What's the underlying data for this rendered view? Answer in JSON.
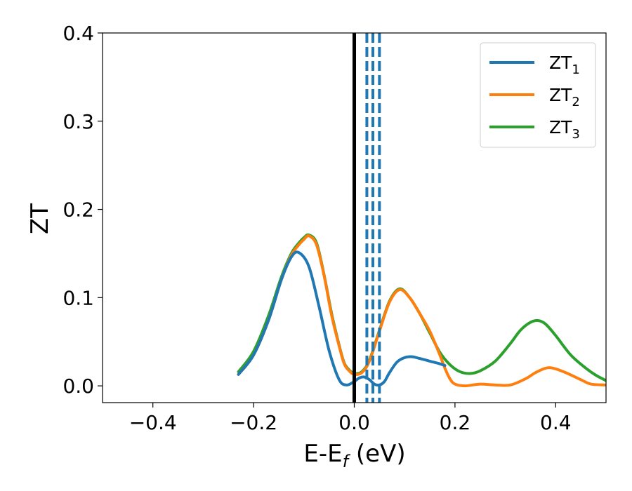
{
  "chart_data": {
    "type": "line",
    "xlabel": "E-E",
    "xlabel_sub": "f",
    "xlabel_unit": " (eV)",
    "ylabel": "ZT",
    "xlim": [
      -0.5,
      0.5
    ],
    "ylim": [
      -0.019,
      0.4
    ],
    "xticks": [
      -0.4,
      -0.2,
      0.0,
      0.2,
      0.4
    ],
    "xtick_labels": [
      "−0.4",
      "−0.2",
      "0.0",
      "0.2",
      "0.4"
    ],
    "yticks": [
      0.0,
      0.1,
      0.2,
      0.3,
      0.4
    ],
    "ytick_labels": [
      "0.0",
      "0.1",
      "0.2",
      "0.3",
      "0.4"
    ],
    "grid": false,
    "legend_position": "top-right",
    "vertical_lines": [
      {
        "x": 0.0,
        "color": "#000000",
        "style": "solid"
      },
      {
        "x": 0.025,
        "color": "#1f77b4",
        "style": "dashed"
      },
      {
        "x": 0.037,
        "color": "#1f77b4",
        "style": "dashed"
      },
      {
        "x": 0.05,
        "color": "#1f77b4",
        "style": "dashed"
      }
    ],
    "series": [
      {
        "name": "ZT",
        "name_sub": "1",
        "color": "#1f77b4",
        "points": [
          [
            -0.23,
            0.013
          ],
          [
            -0.2,
            0.035
          ],
          [
            -0.17,
            0.075
          ],
          [
            -0.145,
            0.12
          ],
          [
            -0.125,
            0.146
          ],
          [
            -0.11,
            0.151
          ],
          [
            -0.09,
            0.135
          ],
          [
            -0.07,
            0.09
          ],
          [
            -0.05,
            0.04
          ],
          [
            -0.03,
            0.007
          ],
          [
            -0.015,
            0.001
          ],
          [
            0.0,
            0.005
          ],
          [
            0.01,
            0.009
          ],
          [
            0.02,
            0.01
          ],
          [
            0.03,
            0.007
          ],
          [
            0.04,
            0.002
          ],
          [
            0.05,
            0.001
          ],
          [
            0.06,
            0.005
          ],
          [
            0.07,
            0.015
          ],
          [
            0.085,
            0.027
          ],
          [
            0.1,
            0.032
          ],
          [
            0.115,
            0.033
          ],
          [
            0.13,
            0.031
          ],
          [
            0.15,
            0.028
          ],
          [
            0.17,
            0.025
          ],
          [
            0.18,
            0.023
          ]
        ]
      },
      {
        "name": "ZT",
        "name_sub": "2",
        "color": "#ff7f0e",
        "points": [
          [
            -0.23,
            0.013
          ],
          [
            -0.2,
            0.035
          ],
          [
            -0.17,
            0.075
          ],
          [
            -0.145,
            0.12
          ],
          [
            -0.125,
            0.148
          ],
          [
            -0.11,
            0.16
          ],
          [
            -0.1,
            0.166
          ],
          [
            -0.09,
            0.17
          ],
          [
            -0.075,
            0.16
          ],
          [
            -0.06,
            0.125
          ],
          [
            -0.045,
            0.08
          ],
          [
            -0.03,
            0.045
          ],
          [
            -0.02,
            0.025
          ],
          [
            -0.01,
            0.017
          ],
          [
            0.0,
            0.013
          ],
          [
            0.015,
            0.015
          ],
          [
            0.03,
            0.028
          ],
          [
            0.05,
            0.062
          ],
          [
            0.07,
            0.095
          ],
          [
            0.09,
            0.109
          ],
          [
            0.11,
            0.1
          ],
          [
            0.13,
            0.082
          ],
          [
            0.15,
            0.062
          ],
          [
            0.17,
            0.035
          ],
          [
            0.18,
            0.02
          ],
          [
            0.19,
            0.008
          ],
          [
            0.2,
            0.002
          ],
          [
            0.22,
            0.0
          ],
          [
            0.25,
            0.002
          ],
          [
            0.28,
            0.001
          ],
          [
            0.31,
            0.001
          ],
          [
            0.34,
            0.008
          ],
          [
            0.36,
            0.015
          ],
          [
            0.38,
            0.02
          ],
          [
            0.395,
            0.02
          ],
          [
            0.42,
            0.015
          ],
          [
            0.45,
            0.007
          ],
          [
            0.47,
            0.002
          ],
          [
            0.5,
            0.001
          ]
        ]
      },
      {
        "name": "ZT",
        "name_sub": "3",
        "color": "#2ca02c",
        "points": [
          [
            -0.23,
            0.016
          ],
          [
            -0.2,
            0.039
          ],
          [
            -0.17,
            0.08
          ],
          [
            -0.145,
            0.123
          ],
          [
            -0.125,
            0.15
          ],
          [
            -0.11,
            0.162
          ],
          [
            -0.1,
            0.168
          ],
          [
            -0.09,
            0.171
          ],
          [
            -0.075,
            0.162
          ],
          [
            -0.06,
            0.126
          ],
          [
            -0.045,
            0.082
          ],
          [
            -0.03,
            0.046
          ],
          [
            -0.02,
            0.026
          ],
          [
            -0.01,
            0.018
          ],
          [
            0.0,
            0.014
          ],
          [
            0.015,
            0.016
          ],
          [
            0.03,
            0.029
          ],
          [
            0.05,
            0.063
          ],
          [
            0.07,
            0.096
          ],
          [
            0.09,
            0.11
          ],
          [
            0.11,
            0.1
          ],
          [
            0.13,
            0.082
          ],
          [
            0.15,
            0.06
          ],
          [
            0.17,
            0.038
          ],
          [
            0.19,
            0.024
          ],
          [
            0.21,
            0.016
          ],
          [
            0.23,
            0.014
          ],
          [
            0.25,
            0.017
          ],
          [
            0.28,
            0.028
          ],
          [
            0.31,
            0.048
          ],
          [
            0.33,
            0.063
          ],
          [
            0.35,
            0.072
          ],
          [
            0.365,
            0.074
          ],
          [
            0.38,
            0.07
          ],
          [
            0.4,
            0.057
          ],
          [
            0.43,
            0.035
          ],
          [
            0.46,
            0.02
          ],
          [
            0.48,
            0.012
          ],
          [
            0.5,
            0.006
          ]
        ]
      }
    ]
  }
}
